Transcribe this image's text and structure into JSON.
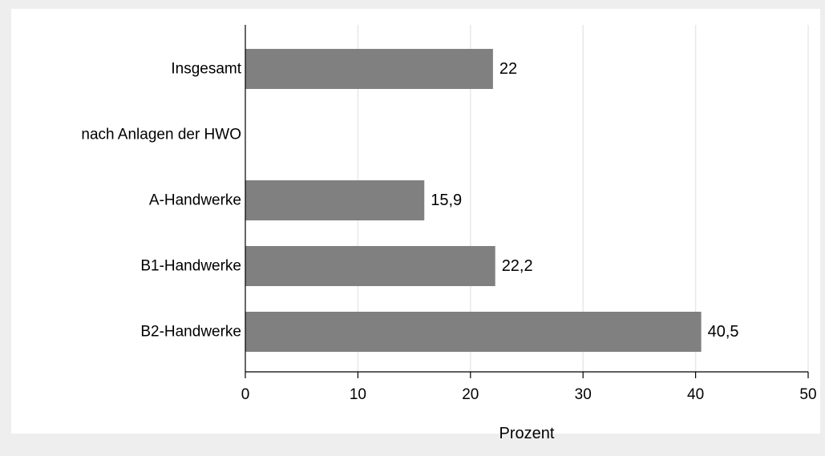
{
  "colors": {
    "background": "#eeeeee",
    "plot_background": "#ffffff",
    "bar": "#808080",
    "grid": "#e8e8e8",
    "axis": "#000000"
  },
  "chart_data": {
    "type": "bar",
    "orientation": "horizontal",
    "categories": [
      "Insgesamt",
      "nach Anlagen der HWO",
      "A-Handwerke",
      "B1-Handwerke",
      "B2-Handwerke"
    ],
    "values": [
      22,
      null,
      15.9,
      22.2,
      40.5
    ],
    "value_labels": [
      "22",
      "",
      "15,9",
      "22,2",
      "40,5"
    ],
    "xlabel": "Prozent",
    "ylabel": "",
    "xlim": [
      0,
      50
    ],
    "xticks": [
      0,
      10,
      20,
      30,
      40,
      50
    ],
    "xtick_labels": [
      "0",
      "10",
      "20",
      "30",
      "40",
      "50"
    ],
    "grid": true,
    "legend": false
  }
}
